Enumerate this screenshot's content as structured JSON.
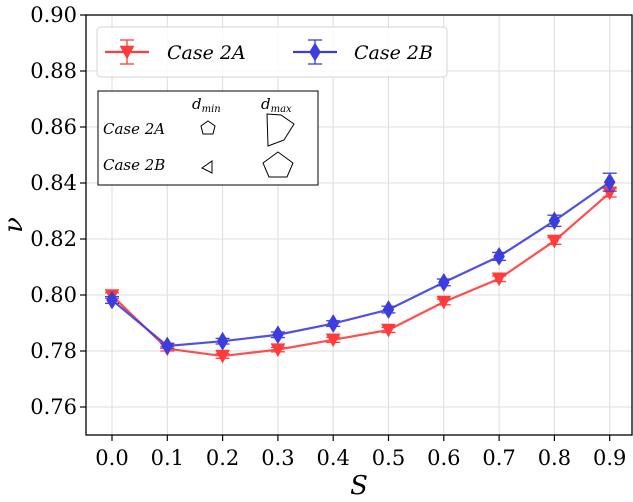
{
  "chart_data": {
    "type": "line",
    "xlabel": "S",
    "ylabel": "ν",
    "xlim": [
      -0.05,
      0.93
    ],
    "ylim": [
      0.75,
      0.9
    ],
    "xticks": [
      "0.0",
      "0.1",
      "0.2",
      "0.3",
      "0.4",
      "0.5",
      "0.6",
      "0.7",
      "0.8",
      "0.9"
    ],
    "yticks": [
      "0.76",
      "0.78",
      "0.80",
      "0.82",
      "0.84",
      "0.86",
      "0.88",
      "0.90"
    ],
    "x": [
      0.0,
      0.1,
      0.2,
      0.3,
      0.4,
      0.5,
      0.6,
      0.7,
      0.8,
      0.9
    ],
    "grid": true,
    "legend_position": "top-left",
    "series": [
      {
        "name": "Case 2A",
        "color": "#ff3b3b",
        "marker": "triangle-down",
        "values": [
          0.7998,
          0.7808,
          0.7782,
          0.7805,
          0.784,
          0.7875,
          0.7975,
          0.8058,
          0.8193,
          0.8365
        ],
        "errors": [
          0.001,
          0.0008,
          0.0008,
          0.0008,
          0.0009,
          0.0009,
          0.001,
          0.001,
          0.0012,
          0.0015
        ]
      },
      {
        "name": "Case 2B",
        "color": "#3d3ddf",
        "marker": "diamond",
        "values": [
          0.7982,
          0.7818,
          0.7835,
          0.7858,
          0.7898,
          0.7948,
          0.8045,
          0.8138,
          0.8265,
          0.8403
        ],
        "errors": [
          0.0012,
          0.0008,
          0.001,
          0.001,
          0.001,
          0.0012,
          0.0012,
          0.0014,
          0.002,
          0.0032
        ]
      }
    ],
    "inset_table": {
      "col_min_base": "d",
      "col_min_sub": "min",
      "col_max_base": "d",
      "col_max_sub": "max",
      "rows": [
        {
          "label": "Case 2A"
        },
        {
          "label": "Case 2B"
        }
      ]
    }
  }
}
